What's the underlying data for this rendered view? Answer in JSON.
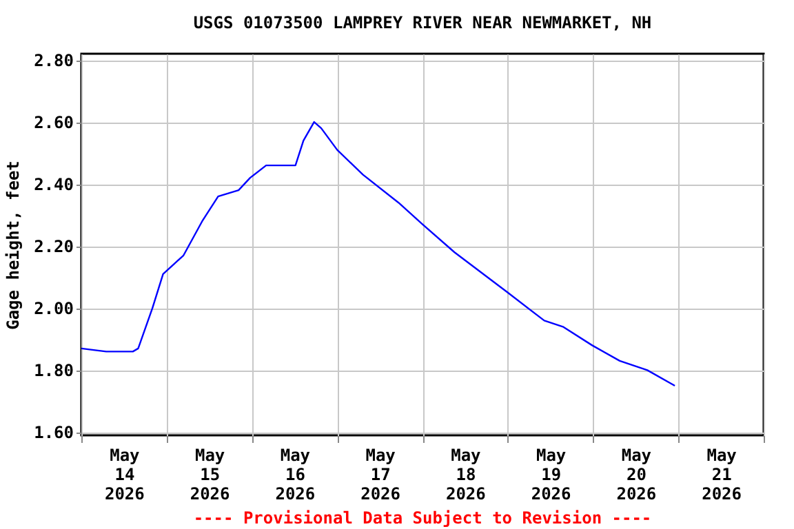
{
  "chart_data": {
    "type": "line",
    "title": "USGS 01073500 LAMPREY RIVER NEAR NEWMARKET, NH",
    "ylabel": "Gage height, feet",
    "annotations": [
      "---- Provisional Data Subject to Revision ----"
    ],
    "x": [
      "2026-05-14T00:00",
      "2026-05-14T07:00",
      "2026-05-14T14:30",
      "2026-05-14T16:00",
      "2026-05-14T20:00",
      "2026-05-14T23:00",
      "2026-05-15T04:45",
      "2026-05-15T10:00",
      "2026-05-15T14:30",
      "2026-05-15T20:15",
      "2026-05-15T23:30",
      "2026-05-16T04:00",
      "2026-05-16T12:15",
      "2026-05-16T14:30",
      "2026-05-16T17:30",
      "2026-05-16T19:30",
      "2026-05-17T00:00",
      "2026-05-17T07:15",
      "2026-05-17T17:15",
      "2026-05-18T00:00",
      "2026-05-18T09:00",
      "2026-05-19T00:00",
      "2026-05-19T10:15",
      "2026-05-19T15:30",
      "2026-05-19T23:45",
      "2026-05-20T07:30",
      "2026-05-20T15:15",
      "2026-05-20T23:00"
    ],
    "series": [
      {
        "color": "#0000ff",
        "values": [
          1.87,
          1.86,
          1.86,
          1.87,
          2.0,
          2.11,
          2.17,
          2.28,
          2.36,
          2.38,
          2.42,
          2.46,
          2.46,
          2.54,
          2.6,
          2.58,
          2.51,
          2.43,
          2.34,
          2.27,
          2.18,
          2.05,
          1.96,
          1.94,
          1.88,
          1.83,
          1.8,
          1.75
        ]
      }
    ],
    "xlim": [
      "2026-05-14T00:00",
      "2026-05-22T00:00"
    ],
    "xticks": [
      {
        "value": "2026-05-14T00:00",
        "label": null
      },
      {
        "value": "2026-05-15T00:00",
        "label": null
      },
      {
        "value": "2026-05-16T00:00",
        "label": null
      },
      {
        "value": "2026-05-17T00:00",
        "label": null
      },
      {
        "value": "2026-05-18T00:00",
        "label": null
      },
      {
        "value": "2026-05-19T00:00",
        "label": null
      },
      {
        "value": "2026-05-20T00:00",
        "label": null
      },
      {
        "value": "2026-05-21T00:00",
        "label": null
      },
      {
        "value": "2026-05-22T00:00",
        "label": null
      },
      {
        "value": "2026-05-14T12:00",
        "label": "May\n14\n2026"
      },
      {
        "value": "2026-05-15T12:00",
        "label": "May\n15\n2026"
      },
      {
        "value": "2026-05-16T12:00",
        "label": "May\n16\n2026"
      },
      {
        "value": "2026-05-17T12:00",
        "label": "May\n17\n2026"
      },
      {
        "value": "2026-05-18T12:00",
        "label": "May\n18\n2026"
      },
      {
        "value": "2026-05-19T12:00",
        "label": "May\n19\n2026"
      },
      {
        "value": "2026-05-20T12:00",
        "label": "May\n20\n2026"
      },
      {
        "value": "2026-05-21T12:00",
        "label": "May\n21\n2026"
      }
    ],
    "ylim": [
      1.59,
      2.82
    ],
    "yticks": [
      {
        "value": 1.6,
        "label": "1.60"
      },
      {
        "value": 1.8,
        "label": "1.80"
      },
      {
        "value": 2.0,
        "label": "2.00"
      },
      {
        "value": 2.2,
        "label": "2.20"
      },
      {
        "value": 2.4,
        "label": "2.40"
      },
      {
        "value": 2.6,
        "label": "2.60"
      },
      {
        "value": 2.8,
        "label": "2.80"
      }
    ],
    "grid": true,
    "marker": "none",
    "line_style": "solid"
  }
}
